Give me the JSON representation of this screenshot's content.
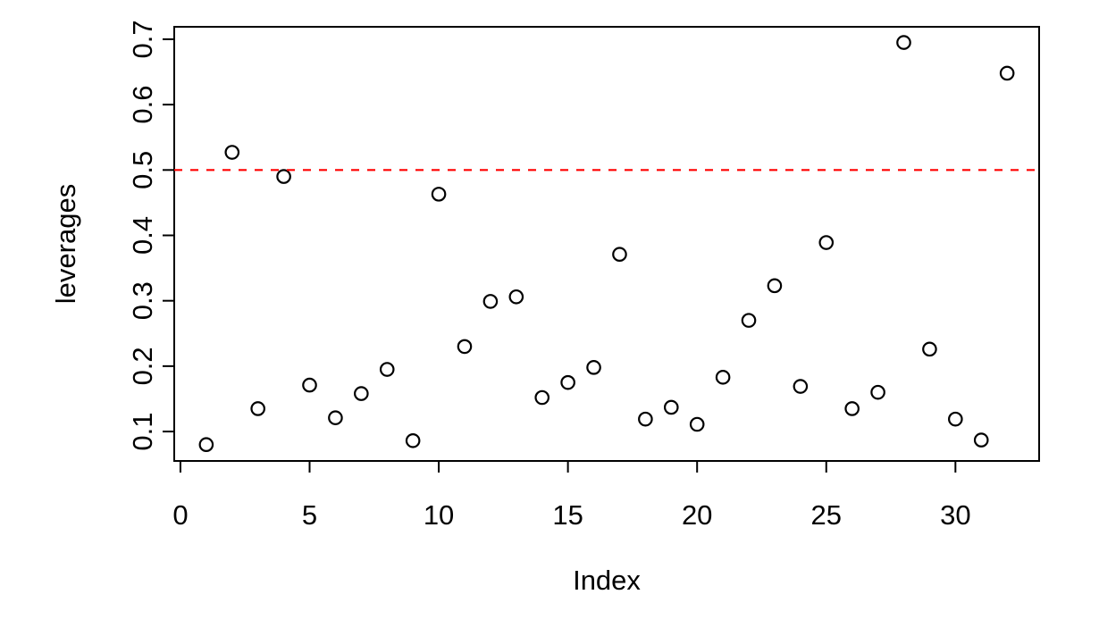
{
  "chart_data": {
    "type": "scatter",
    "title": "",
    "xlabel": "Index",
    "ylabel": "leverages",
    "x": [
      1,
      2,
      3,
      4,
      5,
      6,
      7,
      8,
      9,
      10,
      11,
      12,
      13,
      14,
      15,
      16,
      17,
      18,
      19,
      20,
      21,
      22,
      23,
      24,
      25,
      26,
      27,
      28,
      29,
      30,
      31,
      32
    ],
    "y": [
      0.08,
      0.527,
      0.135,
      0.49,
      0.171,
      0.121,
      0.158,
      0.195,
      0.086,
      0.463,
      0.23,
      0.299,
      0.306,
      0.152,
      0.175,
      0.198,
      0.371,
      0.119,
      0.137,
      0.111,
      0.183,
      0.27,
      0.323,
      0.169,
      0.389,
      0.135,
      0.16,
      0.695,
      0.226,
      0.119,
      0.087,
      0.648
    ],
    "x_ticks": [
      0,
      5,
      10,
      15,
      20,
      25,
      30
    ],
    "y_ticks": [
      0.1,
      0.2,
      0.3,
      0.4,
      0.5,
      0.6,
      0.7
    ],
    "xlim": [
      -0.24,
      33.24
    ],
    "ylim": [
      0.055,
      0.719
    ],
    "grid": false,
    "legend": false,
    "marker": "open-circle",
    "reference_line": {
      "y": 0.5,
      "color": "#ff0000",
      "style": "dashed"
    },
    "colors": {
      "points": "#000000",
      "axis": "#000000",
      "background": "#ffffff",
      "reference": "#ff0000"
    }
  }
}
